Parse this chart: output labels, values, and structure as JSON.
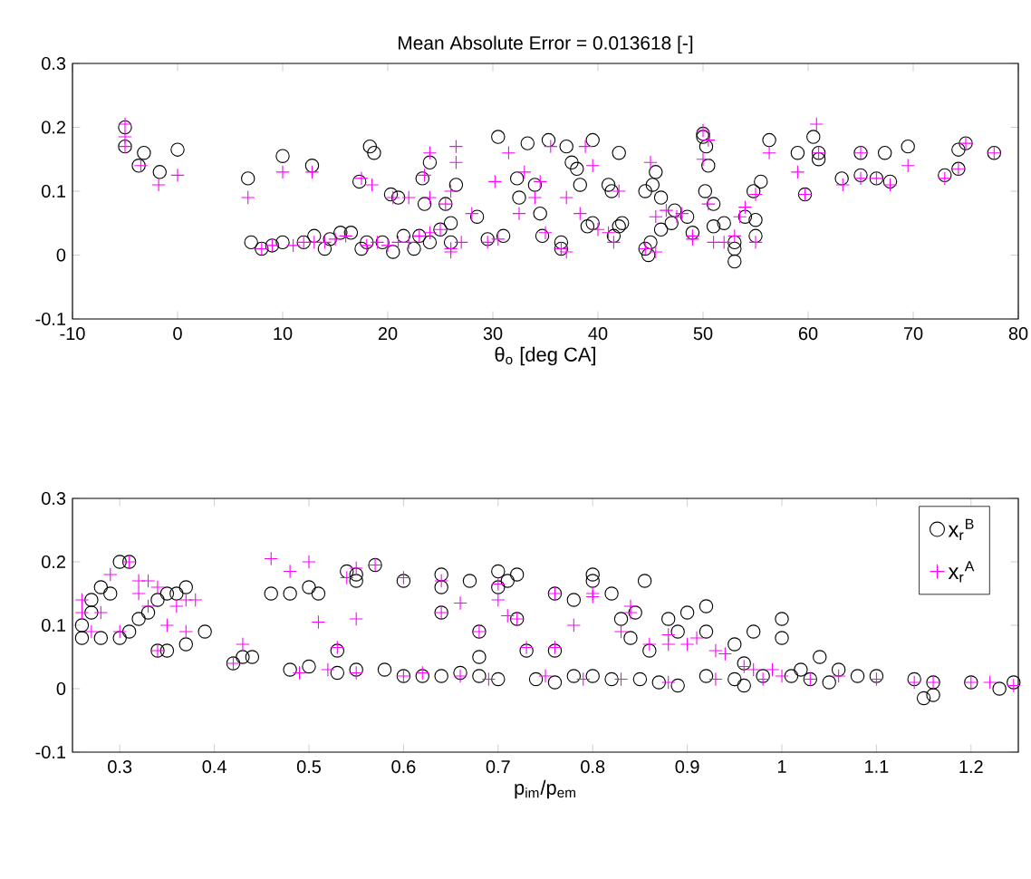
{
  "chart_data": [
    {
      "type": "scatter",
      "title": "Mean Absolute Error = 0.013618 [-]",
      "xlabel": "θ$_{o}$ [deg CA]",
      "xlim": [
        -10,
        80
      ],
      "ylim": [
        -0.1,
        0.3
      ],
      "xticks": [
        -10,
        0,
        10,
        20,
        30,
        40,
        50,
        60,
        70,
        80
      ],
      "yticks": [
        -0.1,
        0,
        0.1,
        0.2,
        0.3
      ],
      "series": [
        {
          "color": "#000000",
          "marker": "circle",
          "x": [
            -5,
            -5,
            -3.2,
            -3.7,
            -1.7,
            0,
            6.7,
            10,
            12.8,
            17.3,
            18.3,
            18.7,
            20.3,
            21,
            23.3,
            24,
            23.5,
            25.5,
            26.5,
            28.5,
            30.5,
            32.3,
            32.5,
            33.3,
            34,
            34.5,
            35.3,
            37,
            37.5,
            38,
            38.3,
            39.5,
            41,
            41.3,
            42,
            42.3,
            44.5,
            45.2,
            45.5,
            46,
            47.3,
            48.5,
            50,
            50,
            50.3,
            50.5,
            50.2,
            51,
            52,
            53,
            53,
            54,
            55,
            55,
            54.8,
            55.5,
            56.3,
            59,
            59.7,
            60.5,
            61,
            61,
            63.2,
            65,
            65,
            66.5,
            67.3,
            67.8,
            69.5,
            73,
            74.3,
            74.3,
            75,
            77.7,
            7,
            8,
            9,
            10,
            12,
            13,
            14,
            14.5,
            15.5,
            16.5,
            17.5,
            18,
            19.5,
            20.5,
            21.5,
            22.5,
            23,
            24,
            25,
            26,
            26,
            29.5,
            31,
            34.7,
            36.5,
            36.5,
            39,
            39.5,
            41.5,
            42,
            44.5,
            44.8,
            45,
            46,
            47,
            49,
            51,
            53
          ],
          "values": [
            0.2,
            0.17,
            0.16,
            0.14,
            0.13,
            0.165,
            0.12,
            0.155,
            0.14,
            0.115,
            0.17,
            0.16,
            0.095,
            0.09,
            0.12,
            0.145,
            0.08,
            0.08,
            0.11,
            0.06,
            0.185,
            0.12,
            0.09,
            0.175,
            0.11,
            0.065,
            0.18,
            0.17,
            0.145,
            0.135,
            0.11,
            0.18,
            0.11,
            0.1,
            0.16,
            0.05,
            0.1,
            0.11,
            0.13,
            0.09,
            0.07,
            0.06,
            0.185,
            0.19,
            0.17,
            0.14,
            0.1,
            0.08,
            0.05,
            0.01,
            -0.01,
            0.06,
            0.055,
            0.03,
            0.1,
            0.115,
            0.18,
            0.16,
            0.095,
            0.185,
            0.15,
            0.16,
            0.12,
            0.125,
            0.16,
            0.12,
            0.16,
            0.115,
            0.17,
            0.125,
            0.135,
            0.165,
            0.175,
            0.16,
            0.02,
            0.01,
            0.015,
            0.02,
            0.02,
            0.03,
            0.01,
            0.025,
            0.035,
            0.035,
            0.01,
            0.02,
            0.02,
            0.005,
            0.03,
            0.01,
            0.03,
            0.02,
            0.04,
            0.05,
            0.02,
            0.025,
            0.03,
            0.03,
            0.02,
            0.01,
            0.045,
            0.05,
            0.03,
            0.045,
            0.01,
            0,
            0.02,
            0.04,
            0.05,
            0.035,
            0.045,
            0.02
          ]
        },
        {
          "color": "#ff00ff",
          "marker": "cross",
          "x": [
            -5,
            -5,
            -5,
            -3.5,
            -1.8,
            0,
            6.7,
            10,
            12.8,
            17.5,
            18.5,
            20.5,
            22,
            24,
            23.5,
            24,
            26.5,
            26.5,
            26,
            25.5,
            28,
            30.2,
            31.5,
            32.5,
            33,
            34.5,
            34,
            35.5,
            37,
            38.3,
            38.8,
            39.5,
            41,
            42,
            45,
            45.5,
            46.5,
            48,
            49,
            50,
            50.5,
            50,
            50.5,
            51,
            52,
            53,
            53.5,
            54,
            55,
            55,
            56.3,
            59,
            59.7,
            60.8,
            61,
            63.3,
            65,
            65,
            66.5,
            67.8,
            69.5,
            73,
            74.3,
            75,
            77.7,
            8,
            9,
            11,
            12,
            13,
            14,
            15,
            16,
            18,
            19,
            20,
            21,
            22,
            23,
            24,
            25,
            26,
            26,
            27,
            29.5,
            30.5,
            35,
            36.5,
            37,
            40,
            41.5,
            44.5,
            45.5,
            47.5,
            49
          ],
          "values": [
            0.205,
            0.185,
            0.17,
            0.14,
            0.11,
            0.125,
            0.09,
            0.13,
            0.13,
            0.12,
            0.11,
            0.09,
            0.09,
            0.16,
            0.125,
            0.09,
            0.17,
            0.145,
            0.1,
            0.08,
            0.065,
            0.115,
            0.16,
            0.065,
            0.13,
            0.115,
            0.09,
            0.17,
            0.09,
            0.065,
            0.17,
            0.14,
            0.035,
            0.1,
            0.145,
            0.06,
            0.07,
            0.065,
            0.03,
            0.195,
            0.18,
            0.15,
            0.08,
            0.02,
            0.02,
            0.03,
            0.06,
            0.075,
            0.02,
            0.095,
            0.16,
            0.13,
            0.095,
            0.205,
            0.16,
            0.11,
            0.16,
            0.12,
            0.12,
            0.11,
            0.14,
            0.12,
            0.135,
            0.175,
            0.16,
            0.01,
            0.015,
            0.015,
            0.02,
            0.02,
            0.02,
            0.025,
            0.03,
            0.015,
            0.02,
            0.015,
            0.02,
            0.02,
            0.03,
            0.035,
            0.04,
            0.01,
            0.005,
            0.02,
            0.02,
            0.025,
            0.035,
            0.01,
            0.005,
            0.04,
            0.02,
            0.01,
            0.005,
            0.06,
            0.025
          ]
        }
      ]
    },
    {
      "type": "scatter",
      "xlabel": "p$_{im}$/p$_{em}$",
      "xlim": [
        0.25,
        1.25
      ],
      "ylim": [
        -0.1,
        0.3
      ],
      "xticks": [
        0.3,
        0.4,
        0.5,
        0.6,
        0.7,
        0.8,
        0.9,
        1,
        1.1,
        1.2
      ],
      "yticks": [
        -0.1,
        0,
        0.1,
        0.2,
        0.3
      ],
      "legend": "top right",
      "series": [
        {
          "name": "x$_{r}$$^{B}$",
          "color": "#000000",
          "marker": "circle",
          "x": [
            0.26,
            0.26,
            0.27,
            0.27,
            0.28,
            0.28,
            0.29,
            0.3,
            0.3,
            0.31,
            0.31,
            0.32,
            0.33,
            0.34,
            0.35,
            0.36,
            0.37,
            0.37,
            0.39,
            0.34,
            0.35,
            0.42,
            0.43,
            0.44,
            0.46,
            0.48,
            0.5,
            0.51,
            0.53,
            0.54,
            0.55,
            0.55,
            0.57,
            0.6,
            0.64,
            0.64,
            0.64,
            0.67,
            0.68,
            0.68,
            0.7,
            0.7,
            0.71,
            0.72,
            0.72,
            0.73,
            0.76,
            0.76,
            0.78,
            0.8,
            0.8,
            0.82,
            0.83,
            0.84,
            0.845,
            0.855,
            0.86,
            0.88,
            0.89,
            0.9,
            0.92,
            0.92,
            0.95,
            0.96,
            0.97,
            1.0,
            1.0,
            1.02,
            1.04,
            1.06,
            1.08,
            1.1,
            1.14,
            1.15,
            1.16,
            1.16,
            1.2,
            1.23,
            1.245,
            0.48,
            0.5,
            0.53,
            0.55,
            0.58,
            0.6,
            0.62,
            0.64,
            0.66,
            0.68,
            0.7,
            0.74,
            0.76,
            0.78,
            0.8,
            0.82,
            0.85,
            0.87,
            0.89,
            0.92,
            0.95,
            0.96,
            0.98,
            1.01,
            1.03,
            1.05
          ],
          "values": [
            0.1,
            0.08,
            0.12,
            0.14,
            0.16,
            0.08,
            0.15,
            0.2,
            0.08,
            0.09,
            0.2,
            0.11,
            0.12,
            0.14,
            0.15,
            0.15,
            0.16,
            0.07,
            0.09,
            0.06,
            0.06,
            0.04,
            0.05,
            0.05,
            0.15,
            0.15,
            0.16,
            0.15,
            0.06,
            0.185,
            0.17,
            0.18,
            0.195,
            0.17,
            0.18,
            0.12,
            0.16,
            0.17,
            0.09,
            0.05,
            0.185,
            0.16,
            0.17,
            0.18,
            0.11,
            0.06,
            0.15,
            0.06,
            0.14,
            0.17,
            0.18,
            0.15,
            0.11,
            0.08,
            0.12,
            0.17,
            0.06,
            0.11,
            0.09,
            0.12,
            0.13,
            0.09,
            0.07,
            0.04,
            0.09,
            0.11,
            0.08,
            0.03,
            0.05,
            0.03,
            0.02,
            0.02,
            0.015,
            -0.015,
            -0.01,
            0.01,
            0.01,
            0,
            0.01,
            0.03,
            0.035,
            0.025,
            0.03,
            0.03,
            0.02,
            0.02,
            0.02,
            0.025,
            0.02,
            0.015,
            0.015,
            0.01,
            0.02,
            0.02,
            0.015,
            0.015,
            0.01,
            0.005,
            0.02,
            0.015,
            0.005,
            0.02,
            0.02,
            0.015,
            0.01
          ]
        },
        {
          "name": "x$_{r}$$^{A}$",
          "color": "#ff00ff",
          "marker": "cross",
          "x": [
            0.26,
            0.26,
            0.27,
            0.28,
            0.29,
            0.3,
            0.31,
            0.32,
            0.32,
            0.33,
            0.34,
            0.33,
            0.35,
            0.36,
            0.37,
            0.38,
            0.37,
            0.34,
            0.43,
            0.42,
            0.46,
            0.48,
            0.5,
            0.51,
            0.54,
            0.55,
            0.55,
            0.57,
            0.6,
            0.53,
            0.64,
            0.64,
            0.66,
            0.68,
            0.7,
            0.7,
            0.71,
            0.72,
            0.73,
            0.76,
            0.76,
            0.78,
            0.8,
            0.8,
            0.83,
            0.84,
            0.84,
            0.86,
            0.88,
            0.88,
            0.9,
            0.91,
            0.93,
            0.94,
            0.96,
            0.97,
            0.99,
            1.0,
            1.03,
            1.06,
            1.1,
            1.14,
            1.16,
            1.2,
            1.22,
            1.245,
            0.49,
            0.52,
            0.55,
            0.6,
            0.62,
            0.66,
            0.69,
            0.75,
            0.79,
            0.83,
            0.88,
            0.93,
            0.98
          ],
          "values": [
            0.14,
            0.12,
            0.09,
            0.12,
            0.18,
            0.09,
            0.2,
            0.17,
            0.15,
            0.17,
            0.16,
            0.13,
            0.1,
            0.13,
            0.14,
            0.14,
            0.09,
            0.06,
            0.07,
            0.04,
            0.205,
            0.185,
            0.2,
            0.105,
            0.175,
            0.11,
            0.19,
            0.195,
            0.175,
            0.065,
            0.17,
            0.12,
            0.135,
            0.09,
            0.165,
            0.14,
            0.115,
            0.11,
            0.065,
            0.15,
            0.065,
            0.1,
            0.145,
            0.15,
            0.09,
            0.12,
            0.13,
            0.07,
            0.085,
            0.07,
            0.07,
            0.08,
            0.06,
            0.055,
            0.035,
            0.03,
            0.03,
            0.02,
            0.015,
            0.02,
            0.015,
            0.01,
            0.01,
            0.01,
            0.01,
            0.005,
            0.025,
            0.03,
            0.025,
            0.02,
            0.025,
            0.02,
            0.015,
            0.02,
            0.015,
            0.015,
            0.01,
            0.015,
            0.015
          ]
        }
      ]
    }
  ]
}
